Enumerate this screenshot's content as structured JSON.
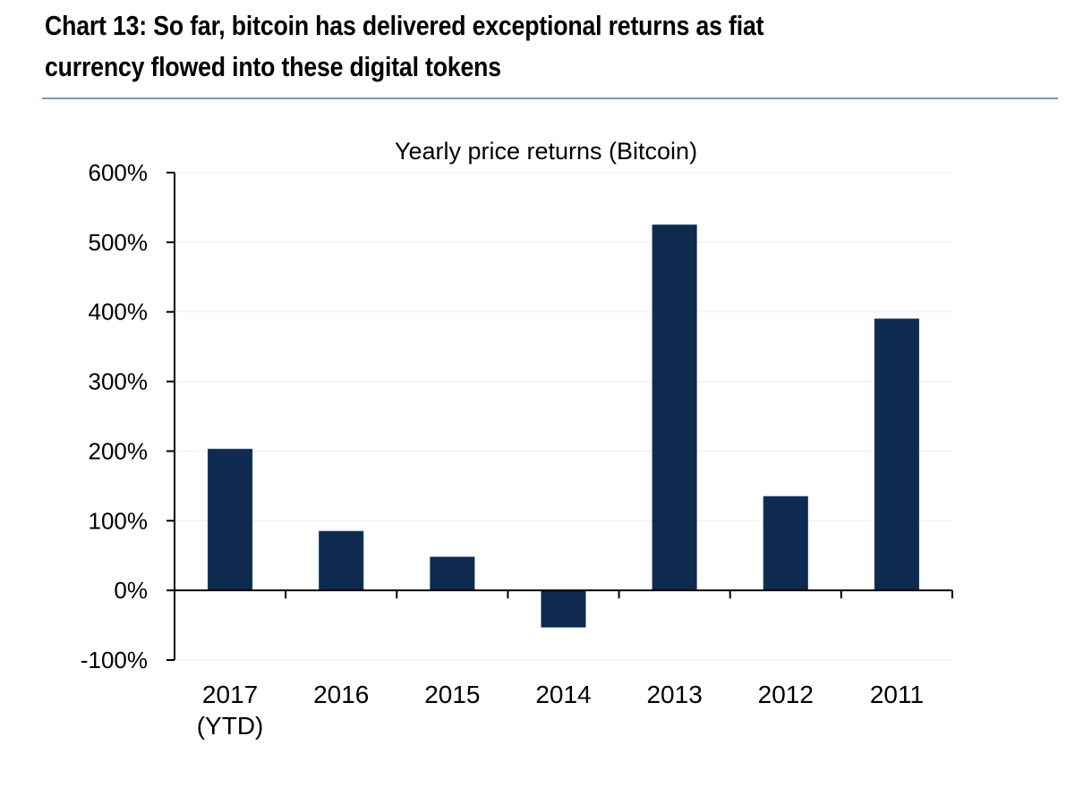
{
  "header": {
    "title_line1": "Chart 13: So far, bitcoin has delivered exceptional returns as fiat",
    "title_line2": "currency flowed into these digital tokens"
  },
  "chart_data": {
    "type": "bar",
    "title": "Yearly price returns (Bitcoin)",
    "xlabel": "",
    "ylabel": "",
    "categories": [
      "2017 (YTD)",
      "2016",
      "2015",
      "2014",
      "2013",
      "2012",
      "2011"
    ],
    "category_lines": [
      [
        "2017",
        "(YTD)"
      ],
      [
        "2016"
      ],
      [
        "2015"
      ],
      [
        "2014"
      ],
      [
        "2013"
      ],
      [
        "2012"
      ],
      [
        "2011"
      ]
    ],
    "values": [
      203,
      85,
      48,
      -53,
      525,
      135,
      390
    ],
    "value_unit": "%",
    "ylim": [
      -100,
      600
    ],
    "yticks": [
      -100,
      0,
      100,
      200,
      300,
      400,
      500,
      600
    ],
    "ytick_labels": [
      "-100%",
      "0%",
      "100%",
      "200%",
      "300%",
      "400%",
      "500%",
      "600%"
    ],
    "grid": true,
    "legend": "none",
    "bar_color": "#0e2a4f"
  }
}
